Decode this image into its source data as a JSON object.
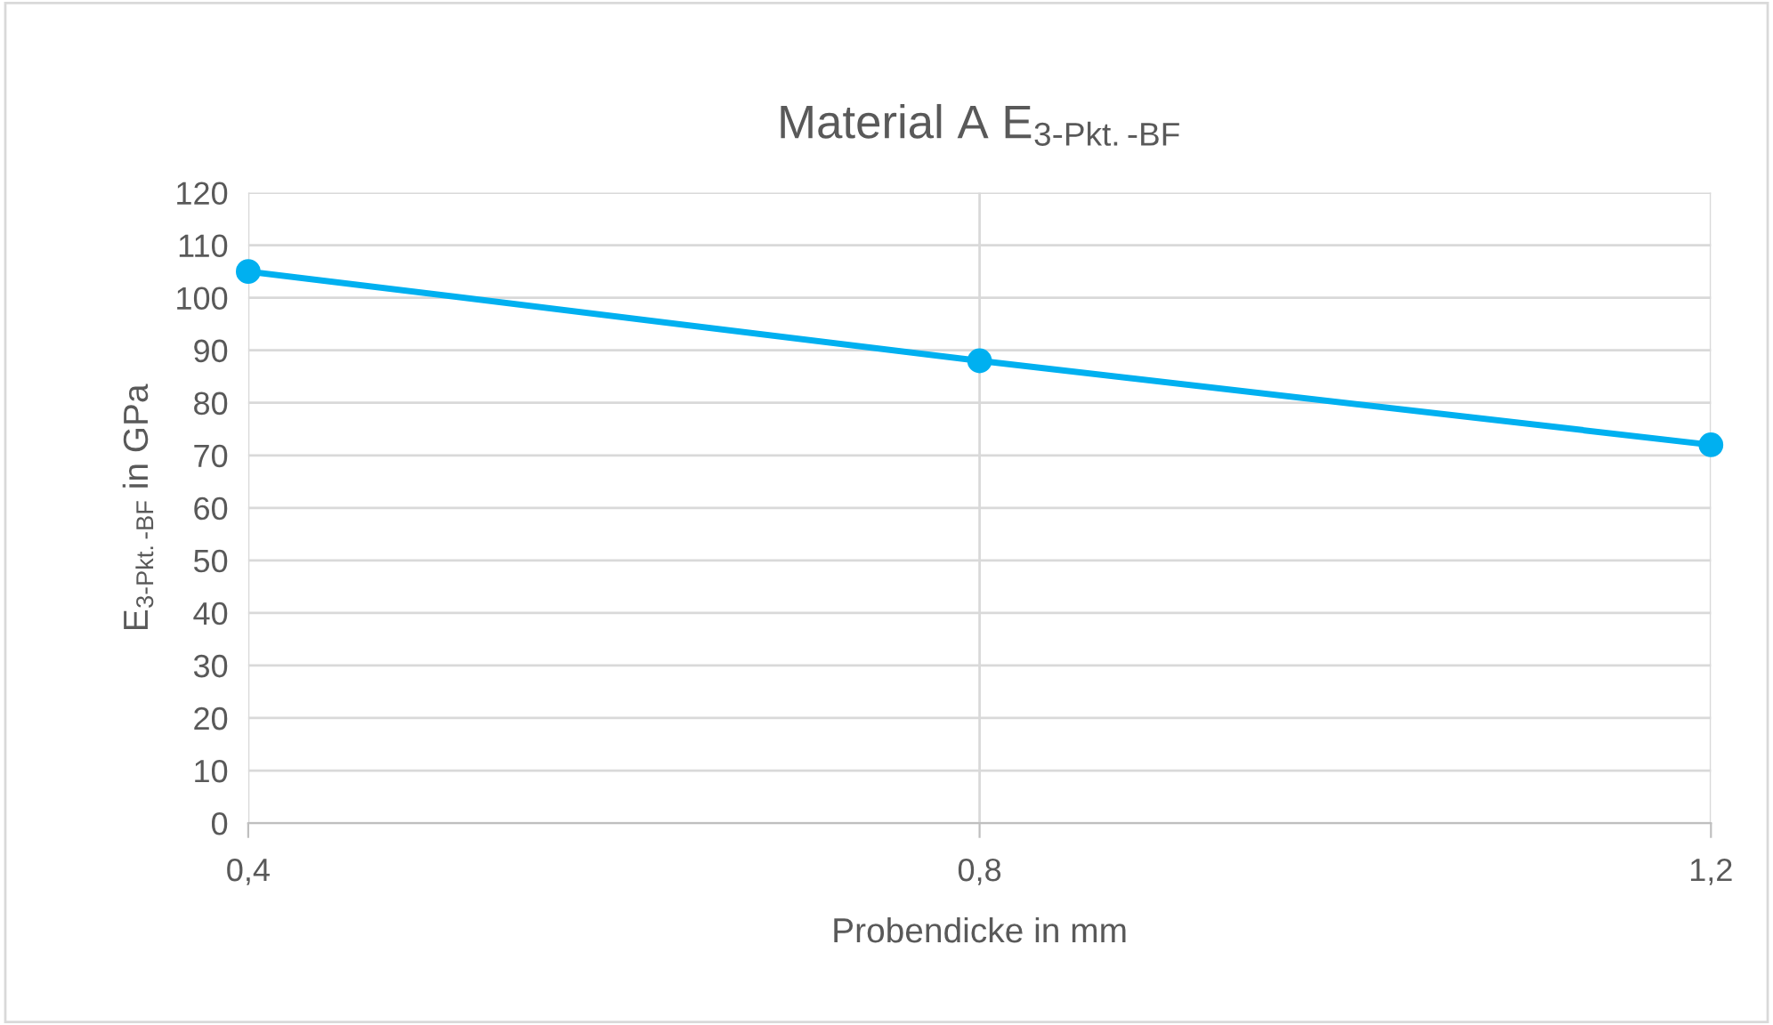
{
  "chart_data": {
    "type": "line",
    "title": "Material A E$_{3-Pkt.-BF}$",
    "xlabel": "Probendicke in mm",
    "ylabel": "E$_{3-Pkt.-BF}$ in GPa",
    "x": [
      0.4,
      0.8,
      1.2
    ],
    "series": [
      {
        "color": "#00b0f0",
        "values": [
          105,
          88,
          72
        ]
      }
    ],
    "xlim": [
      0.4,
      1.2
    ],
    "xticks": [
      {
        "value": 0.4,
        "label": "0,4"
      },
      {
        "value": 0.8,
        "label": "0,8"
      },
      {
        "value": 1.2,
        "label": "1,2"
      }
    ],
    "ylim": [
      0,
      120
    ],
    "yticks": [
      0,
      10,
      20,
      30,
      40,
      50,
      60,
      70,
      80,
      90,
      100,
      110,
      120
    ],
    "grid": true,
    "marker": "circle",
    "line_style": "solid"
  }
}
